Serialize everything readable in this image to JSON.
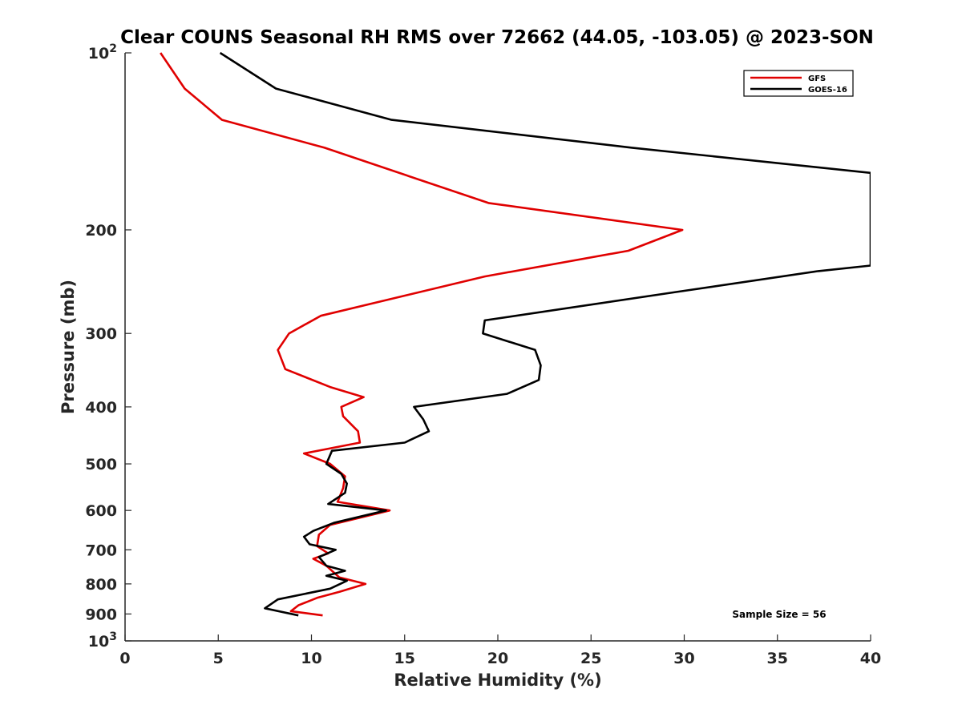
{
  "chart_data": {
    "type": "line",
    "title": "Clear COUNS Seasonal RH RMS over 72662 (44.05, -103.05) @ 2023-SON",
    "xlabel": "Relative Humidity (%)",
    "ylabel": "Pressure (mb)",
    "xlim": [
      0,
      40
    ],
    "ylim": [
      100,
      1000
    ],
    "yscale": "log",
    "yreversed": true,
    "grid": false,
    "legend_location": "top-right",
    "x_ticks": [
      0,
      5,
      10,
      15,
      20,
      25,
      30,
      35,
      40
    ],
    "x_tick_labels": [
      "0",
      "5",
      "10",
      "15",
      "20",
      "25",
      "30",
      "35",
      "40"
    ],
    "y_ticks": [
      {
        "value": 100,
        "base": "10",
        "exp": "2"
      },
      {
        "value": 200,
        "label": "200"
      },
      {
        "value": 300,
        "label": "300"
      },
      {
        "value": 400,
        "label": "400"
      },
      {
        "value": 500,
        "label": "500"
      },
      {
        "value": 600,
        "label": "600"
      },
      {
        "value": 700,
        "label": "700"
      },
      {
        "value": 800,
        "label": "800"
      },
      {
        "value": 900,
        "label": "900"
      },
      {
        "value": 1000,
        "base": "10",
        "exp": "3"
      }
    ],
    "series": [
      {
        "name": "GFS",
        "color": "#e00000",
        "points": [
          [
            1.9,
            100
          ],
          [
            3.2,
            115
          ],
          [
            5.2,
            130
          ],
          [
            10.7,
            145
          ],
          [
            19.5,
            180
          ],
          [
            29.9,
            200
          ],
          [
            27.0,
            217
          ],
          [
            19.3,
            240
          ],
          [
            10.5,
            280
          ],
          [
            8.8,
            300
          ],
          [
            8.2,
            320
          ],
          [
            8.6,
            345
          ],
          [
            11.0,
            370
          ],
          [
            12.8,
            385
          ],
          [
            11.6,
            400
          ],
          [
            11.7,
            415
          ],
          [
            12.5,
            440
          ],
          [
            12.6,
            460
          ],
          [
            9.6,
            480
          ],
          [
            11.0,
            500
          ],
          [
            11.8,
            525
          ],
          [
            11.7,
            550
          ],
          [
            11.4,
            580
          ],
          [
            14.2,
            600
          ],
          [
            11.0,
            635
          ],
          [
            10.4,
            660
          ],
          [
            10.3,
            690
          ],
          [
            10.9,
            710
          ],
          [
            10.1,
            725
          ],
          [
            10.8,
            745
          ],
          [
            11.3,
            770
          ],
          [
            11.5,
            780
          ],
          [
            12.9,
            800
          ],
          [
            11.5,
            825
          ],
          [
            10.3,
            845
          ],
          [
            9.3,
            870
          ],
          [
            8.9,
            890
          ],
          [
            10.6,
            905
          ]
        ]
      },
      {
        "name": "GOES-16",
        "color": "#000000",
        "points": [
          [
            5.1,
            100
          ],
          [
            8.1,
            115
          ],
          [
            14.3,
            130
          ],
          [
            27.2,
            145
          ],
          [
            40.0,
            160
          ],
          [
            40.0,
            230
          ],
          [
            37.2,
            235
          ],
          [
            29.6,
            255
          ],
          [
            19.3,
            285
          ],
          [
            19.2,
            300
          ],
          [
            22.0,
            320
          ],
          [
            22.3,
            340
          ],
          [
            22.2,
            360
          ],
          [
            20.5,
            380
          ],
          [
            15.5,
            400
          ],
          [
            16.0,
            420
          ],
          [
            16.3,
            440
          ],
          [
            15.0,
            460
          ],
          [
            11.1,
            475
          ],
          [
            10.8,
            500
          ],
          [
            11.6,
            520
          ],
          [
            11.9,
            540
          ],
          [
            11.8,
            560
          ],
          [
            10.9,
            585
          ],
          [
            14.0,
            600
          ],
          [
            11.2,
            630
          ],
          [
            10.1,
            650
          ],
          [
            9.6,
            665
          ],
          [
            9.9,
            685
          ],
          [
            11.3,
            700
          ],
          [
            10.4,
            720
          ],
          [
            10.8,
            745
          ],
          [
            11.8,
            760
          ],
          [
            10.8,
            775
          ],
          [
            11.9,
            790
          ],
          [
            11.0,
            815
          ],
          [
            8.2,
            850
          ],
          [
            7.5,
            880
          ],
          [
            9.3,
            905
          ]
        ]
      }
    ],
    "annotation": "Sample Size = 56"
  }
}
